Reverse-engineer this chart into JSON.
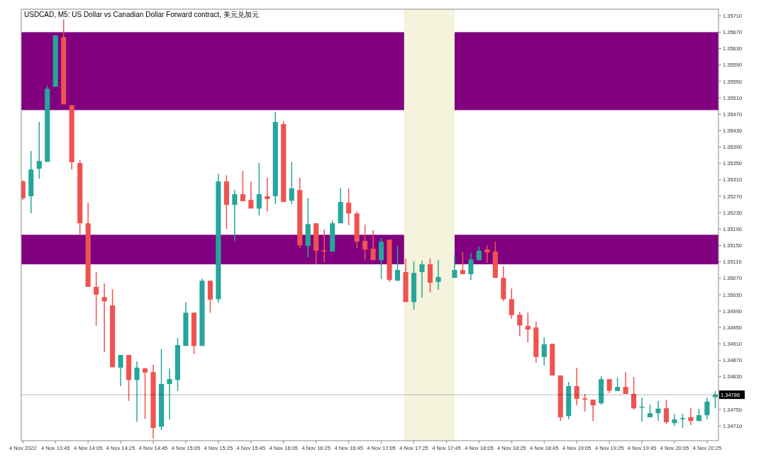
{
  "chart_data": {
    "type": "candlestick",
    "title": "USDCAD, M5:  US Dollar vs Canadian Dollar Forward contract, 美元兑加元",
    "x": [
      "2022-11-04T13:25",
      "2022-11-04T13:30",
      "2022-11-04T13:35",
      "2022-11-04T13:40",
      "2022-11-04T13:45",
      "2022-11-04T13:50",
      "2022-11-04T13:55",
      "2022-11-04T14:00",
      "2022-11-04T14:05",
      "2022-11-04T14:10",
      "2022-11-04T14:15",
      "2022-11-04T14:20",
      "2022-11-04T14:25",
      "2022-11-04T14:30",
      "2022-11-04T14:35",
      "2022-11-04T14:40",
      "2022-11-04T14:45",
      "2022-11-04T14:50",
      "2022-11-04T14:55",
      "2022-11-04T15:00",
      "2022-11-04T15:05",
      "2022-11-04T15:10",
      "2022-11-04T15:15",
      "2022-11-04T15:20",
      "2022-11-04T15:25",
      "2022-11-04T15:30",
      "2022-11-04T15:35",
      "2022-11-04T15:40",
      "2022-11-04T15:45",
      "2022-11-04T15:50",
      "2022-11-04T15:55",
      "2022-11-04T16:00",
      "2022-11-04T16:05",
      "2022-11-04T16:10",
      "2022-11-04T16:15",
      "2022-11-04T16:20",
      "2022-11-04T16:25",
      "2022-11-04T16:30",
      "2022-11-04T16:35",
      "2022-11-04T16:40",
      "2022-11-04T16:45",
      "2022-11-04T16:50",
      "2022-11-04T16:55",
      "2022-11-04T17:00",
      "2022-11-04T17:05",
      "2022-11-04T17:10",
      "2022-11-04T17:15",
      "2022-11-04T17:20",
      "2022-11-04T17:25",
      "2022-11-04T17:30",
      "2022-11-04T17:35",
      "2022-11-04T17:40",
      "2022-11-04T17:50",
      "2022-11-04T17:55",
      "2022-11-04T18:00",
      "2022-11-04T18:05",
      "2022-11-04T18:10",
      "2022-11-04T18:15",
      "2022-11-04T18:20",
      "2022-11-04T18:25",
      "2022-11-04T18:30",
      "2022-11-04T18:35",
      "2022-11-04T18:40",
      "2022-11-04T18:45",
      "2022-11-04T18:50",
      "2022-11-04T18:55",
      "2022-11-04T19:00",
      "2022-11-04T19:05",
      "2022-11-04T19:10",
      "2022-11-04T19:15",
      "2022-11-04T19:20",
      "2022-11-04T19:25",
      "2022-11-04T19:30",
      "2022-11-04T19:35",
      "2022-11-04T19:40",
      "2022-11-04T19:45",
      "2022-11-04T19:50",
      "2022-11-04T19:55",
      "2022-11-04T20:00",
      "2022-11-04T20:05",
      "2022-11-04T20:10",
      "2022-11-04T20:15",
      "2022-11-04T20:20",
      "2022-11-04T20:25",
      "2022-11-04T20:30"
    ],
    "ohlc": [
      [
        1.35306,
        1.35309,
        1.35261,
        1.35265
      ],
      [
        1.3527,
        1.3538,
        1.35228,
        1.35335
      ],
      [
        1.35337,
        1.35451,
        1.35313,
        1.35356
      ],
      [
        1.35354,
        1.35539,
        1.35354,
        1.35532
      ],
      [
        1.35537,
        1.35662,
        1.35537,
        1.35662
      ],
      [
        1.35658,
        1.35701,
        1.35494,
        1.35494
      ],
      [
        1.35492,
        1.35492,
        1.35335,
        1.35353
      ],
      [
        1.35351,
        1.35358,
        1.35176,
        1.35204
      ],
      [
        1.35204,
        1.35254,
        1.35049,
        1.35049
      ],
      [
        1.35049,
        1.35085,
        1.34954,
        1.3503
      ],
      [
        1.35024,
        1.35057,
        1.3489,
        1.35014
      ],
      [
        1.35004,
        1.35043,
        1.34853,
        1.34853
      ],
      [
        1.34852,
        1.34883,
        1.34807,
        1.34883
      ],
      [
        1.34883,
        1.34883,
        1.34771,
        1.34822
      ],
      [
        1.34822,
        1.34867,
        1.3472,
        1.34852
      ],
      [
        1.3485,
        1.34852,
        1.34727,
        1.3484
      ],
      [
        1.34841,
        1.34859,
        1.34679,
        1.34705
      ],
      [
        1.34708,
        1.34897,
        1.347,
        1.34812
      ],
      [
        1.34812,
        1.3485,
        1.34726,
        1.34824
      ],
      [
        1.34822,
        1.34924,
        1.34795,
        1.34907
      ],
      [
        1.34905,
        1.35012,
        1.34905,
        1.34986
      ],
      [
        1.34986,
        1.34986,
        1.34885,
        1.34905
      ],
      [
        1.34905,
        1.35069,
        1.34905,
        1.35064
      ],
      [
        1.35064,
        1.35064,
        1.34986,
        1.35018
      ],
      [
        1.35019,
        1.35325,
        1.35011,
        1.35306
      ],
      [
        1.35306,
        1.35321,
        1.3519,
        1.35249
      ],
      [
        1.35249,
        1.35285,
        1.35161,
        1.35275
      ],
      [
        1.35275,
        1.35332,
        1.35258,
        1.35258
      ],
      [
        1.35261,
        1.35306,
        1.3524,
        1.3524
      ],
      [
        1.3524,
        1.35351,
        1.35223,
        1.35275
      ],
      [
        1.3527,
        1.35315,
        1.35233,
        1.35263
      ],
      [
        1.3527,
        1.35475,
        1.35251,
        1.35451
      ],
      [
        1.35446,
        1.35453,
        1.35256,
        1.35256
      ],
      [
        1.35259,
        1.35353,
        1.35251,
        1.35289
      ],
      [
        1.35285,
        1.35315,
        1.35144,
        1.3515
      ],
      [
        1.35149,
        1.35266,
        1.35121,
        1.35202
      ],
      [
        1.35204,
        1.35204,
        1.35104,
        1.35137
      ],
      [
        1.35138,
        1.35189,
        1.35109,
        1.35135
      ],
      [
        1.35135,
        1.35211,
        1.35135,
        1.35204
      ],
      [
        1.35204,
        1.3529,
        1.35204,
        1.35256
      ],
      [
        1.35254,
        1.35289,
        1.35199,
        1.35228
      ],
      [
        1.35228,
        1.35233,
        1.35144,
        1.35159
      ],
      [
        1.35161,
        1.35201,
        1.35114,
        1.3514
      ],
      [
        1.35142,
        1.35187,
        1.35114,
        1.35114
      ],
      [
        1.35114,
        1.35168,
        1.35068,
        1.35159
      ],
      [
        1.35164,
        1.35164,
        1.35061,
        1.35066
      ],
      [
        1.35064,
        1.35149,
        1.35064,
        1.3509
      ],
      [
        1.35085,
        1.35118,
        1.35012,
        1.35012
      ],
      [
        1.35012,
        1.35111,
        1.34993,
        1.35083
      ],
      [
        1.35085,
        1.35113,
        1.35023,
        1.35104
      ],
      [
        1.35104,
        1.35118,
        1.35035,
        1.35059
      ],
      [
        1.35061,
        1.35114,
        1.35042,
        1.35073
      ],
      [
        1.35071,
        1.35128,
        1.35071,
        1.3509
      ],
      [
        1.3509,
        1.35135,
        1.3508,
        1.3508
      ],
      [
        1.3508,
        1.35132,
        1.35066,
        1.35116
      ],
      [
        1.35114,
        1.35147,
        1.35114,
        1.35137
      ],
      [
        1.3514,
        1.3515,
        1.35107,
        1.35133
      ],
      [
        1.35135,
        1.35159,
        1.35071,
        1.35071
      ],
      [
        1.35071,
        1.35099,
        1.35014,
        1.35019
      ],
      [
        1.35019,
        1.35045,
        1.34971,
        1.3498
      ],
      [
        1.34981,
        1.34988,
        1.34929,
        1.34955
      ],
      [
        1.34954,
        1.34986,
        1.34914,
        1.34945
      ],
      [
        1.3495,
        1.34964,
        1.34864,
        1.34878
      ],
      [
        1.34878,
        1.34926,
        1.34857,
        1.34909
      ],
      [
        1.3491,
        1.3491,
        1.34833,
        1.34833
      ],
      [
        1.34833,
        1.34833,
        1.34722,
        1.34731
      ],
      [
        1.34734,
        1.34817,
        1.34726,
        1.34807
      ],
      [
        1.34807,
        1.34852,
        1.3476,
        1.34776
      ],
      [
        1.34777,
        1.34788,
        1.34745,
        1.34774
      ],
      [
        1.34774,
        1.34774,
        1.34722,
        1.3476
      ],
      [
        1.34765,
        1.34831,
        1.34762,
        1.34824
      ],
      [
        1.34824,
        1.34824,
        1.3479,
        1.34796
      ],
      [
        1.34795,
        1.34828,
        1.34795,
        1.34805
      ],
      [
        1.34805,
        1.34841,
        1.34788,
        1.34788
      ],
      [
        1.34788,
        1.34829,
        1.3475,
        1.34753
      ],
      [
        1.34755,
        1.34779,
        1.3472,
        1.34757
      ],
      [
        1.34731,
        1.34762,
        1.34731,
        1.34741
      ],
      [
        1.34741,
        1.34771,
        1.34722,
        1.34752
      ],
      [
        1.34753,
        1.34774,
        1.34714,
        1.34719
      ],
      [
        1.34717,
        1.34739,
        1.3471,
        1.34726
      ],
      [
        1.34727,
        1.34739,
        1.34705,
        1.34729
      ],
      [
        1.34731,
        1.34753,
        1.34712,
        1.34722
      ],
      [
        1.34722,
        1.34752,
        1.34722,
        1.34736
      ],
      [
        1.34736,
        1.34779,
        1.34726,
        1.34769
      ],
      [
        1.3478,
        1.34795,
        1.34753,
        1.34786
      ]
    ],
    "colors": [
      "#ef5350",
      "#26a69a",
      "#26a69a",
      "#26a69a",
      "#26a69a",
      "#ef5350",
      "#ef5350",
      "#ef5350",
      "#ef5350",
      "#ef5350",
      "#ef5350",
      "#ef5350",
      "#26a69a",
      "#ef5350",
      "#26a69a",
      "#ef5350",
      "#ef5350",
      "#26a69a",
      "#26a69a",
      "#26a69a",
      "#26a69a",
      "#ef5350",
      "#26a69a",
      "#ef5350",
      "#26a69a",
      "#ef5350",
      "#26a69a",
      "#ef5350",
      "#ef5350",
      "#26a69a",
      "#ef5350",
      "#26a69a",
      "#ef5350",
      "#26a69a",
      "#ef5350",
      "#26a69a",
      "#ef5350",
      "#ef5350",
      "#26a69a",
      "#26a69a",
      "#ef5350",
      "#ef5350",
      "#ef5350",
      "#ef5350",
      "#26a69a",
      "#ef5350",
      "#26a69a",
      "#ef5350",
      "#26a69a",
      "#26a69a",
      "#ef5350",
      "#26a69a",
      "#26a69a",
      "#ef5350",
      "#26a69a",
      "#26a69a",
      "#ef5350",
      "#ef5350",
      "#ef5350",
      "#ef5350",
      "#ef5350",
      "#ef5350",
      "#ef5350",
      "#26a69a",
      "#ef5350",
      "#ef5350",
      "#26a69a",
      "#ef5350",
      "#ef5350",
      "#ef5350",
      "#26a69a",
      "#ef5350",
      "#26a69a",
      "#ef5350",
      "#ef5350",
      "#26a69a",
      "#26a69a",
      "#26a69a",
      "#ef5350",
      "#26a69a",
      "#26a69a",
      "#ef5350",
      "#26a69a",
      "#26a69a",
      "#26a69a"
    ],
    "xlim": [
      "2022-11-04T13:24",
      "2022-11-04T20:32"
    ],
    "xticks": [
      {
        "value": "2022-11-04T13:25",
        "label": "4 Nov 2022"
      },
      {
        "value": "2022-11-04T13:45",
        "label": "4 Nov 13:45"
      },
      {
        "value": "2022-11-04T14:05",
        "label": "4 Nov 14:05"
      },
      {
        "value": "2022-11-04T14:25",
        "label": "4 Nov 14:25"
      },
      {
        "value": "2022-11-04T14:45",
        "label": "4 Nov 14:45"
      },
      {
        "value": "2022-11-04T15:05",
        "label": "4 Nov 15:05"
      },
      {
        "value": "2022-11-04T15:25",
        "label": "4 Nov 15:25"
      },
      {
        "value": "2022-11-04T15:45",
        "label": "4 Nov 15:45"
      },
      {
        "value": "2022-11-04T16:05",
        "label": "4 Nov 16:05"
      },
      {
        "value": "2022-11-04T16:25",
        "label": "4 Nov 16:25"
      },
      {
        "value": "2022-11-04T16:45",
        "label": "4 Nov 16:45"
      },
      {
        "value": "2022-11-04T17:05",
        "label": "4 Nov 17:05"
      },
      {
        "value": "2022-11-04T17:25",
        "label": "4 Nov 17:25"
      },
      {
        "value": "2022-11-04T17:45",
        "label": "4 Nov 17:45"
      },
      {
        "value": "2022-11-04T18:05",
        "label": "4 Nov 18:05"
      },
      {
        "value": "2022-11-04T18:25",
        "label": "4 Nov 18:25"
      },
      {
        "value": "2022-11-04T18:45",
        "label": "4 Nov 18:45"
      },
      {
        "value": "2022-11-04T19:05",
        "label": "4 Nov 19:05"
      },
      {
        "value": "2022-11-04T19:25",
        "label": "4 Nov 19:25"
      },
      {
        "value": "2022-11-04T19:45",
        "label": "4 Nov 19:45"
      },
      {
        "value": "2022-11-04T20:05",
        "label": "4 Nov 20:05"
      },
      {
        "value": "2022-11-04T20:25",
        "label": "4 Nov 20:25"
      }
    ],
    "ylim": [
      1.34674,
      1.35726
    ],
    "yticks": [
      {
        "value": 1.3571,
        "label": "1.35710"
      },
      {
        "value": 1.3567,
        "label": "1.35670"
      },
      {
        "value": 1.3563,
        "label": "1.35630"
      },
      {
        "value": 1.3559,
        "label": "1.35590"
      },
      {
        "value": 1.3555,
        "label": "1.35550"
      },
      {
        "value": 1.3551,
        "label": "1.35510"
      },
      {
        "value": 1.3547,
        "label": "1.35470"
      },
      {
        "value": 1.3543,
        "label": "1.35430"
      },
      {
        "value": 1.3539,
        "label": "1.35390"
      },
      {
        "value": 1.3535,
        "label": "1.35350"
      },
      {
        "value": 1.3531,
        "label": "1.35310"
      },
      {
        "value": 1.3527,
        "label": "1.35270"
      },
      {
        "value": 1.3523,
        "label": "1.35230"
      },
      {
        "value": 1.3519,
        "label": "1.35190"
      },
      {
        "value": 1.3515,
        "label": "1.35150"
      },
      {
        "value": 1.3511,
        "label": "1.35110"
      },
      {
        "value": 1.3507,
        "label": "1.35070"
      },
      {
        "value": 1.3503,
        "label": "1.35030"
      },
      {
        "value": 1.3499,
        "label": "1.34990"
      },
      {
        "value": 1.3495,
        "label": "1.34950"
      },
      {
        "value": 1.3491,
        "label": "1.34910"
      },
      {
        "value": 1.3487,
        "label": "1.34870"
      },
      {
        "value": 1.3483,
        "label": "1.34830"
      },
      {
        "value": 1.3479,
        "label": null
      },
      {
        "value": 1.3475,
        "label": "1.34750"
      },
      {
        "value": 1.3471,
        "label": "1.34710"
      }
    ],
    "bands": [
      {
        "axis": "y",
        "from": 1.3548,
        "to": 1.3567,
        "color": "#800080"
      },
      {
        "axis": "y",
        "from": 1.35104,
        "to": 1.35176,
        "color": "#800080"
      },
      {
        "axis": "x",
        "from": "2022-11-04T17:19",
        "to": "2022-11-04T17:50",
        "color": "#f5f3dc"
      }
    ],
    "ref_lines": [
      {
        "axis": "y",
        "value": 1.34786,
        "label": "1.34786",
        "color": "#000000"
      }
    ]
  }
}
